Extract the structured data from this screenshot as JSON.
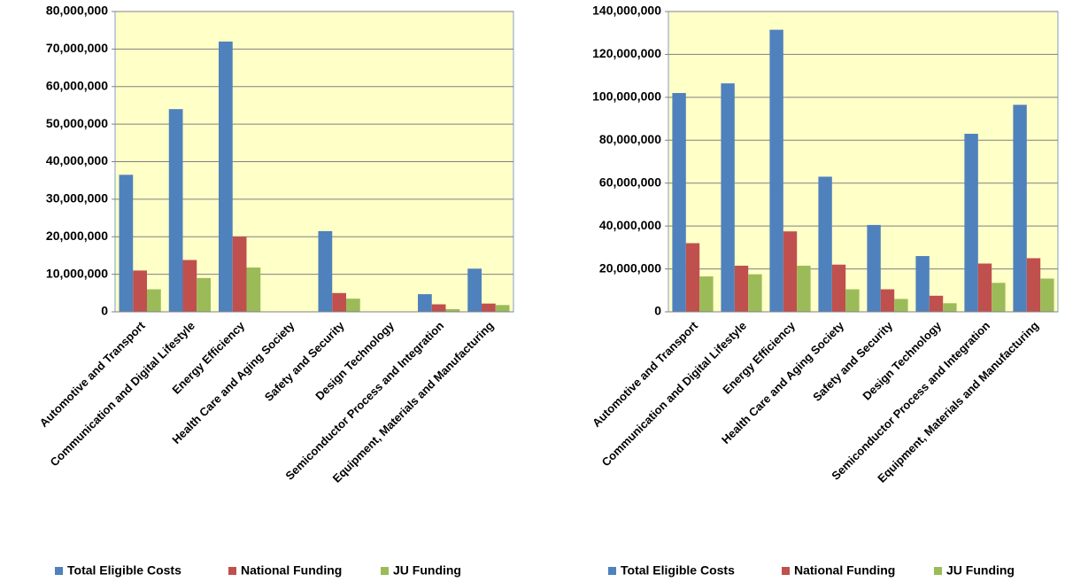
{
  "chart_data": [
    {
      "type": "bar",
      "categories": [
        "Automotive and Transport",
        "Communication and Digital Lifestyle",
        "Energy Efficiency",
        "Health Care and Aging Society",
        "Safety and Security",
        "Design Technology",
        "Semiconductor Process and Integration",
        "Equipment, Materials and Manufacturing"
      ],
      "series": [
        {
          "name": "Total Eligible Costs",
          "color": "#4f81bd",
          "values": [
            36500000,
            54000000,
            72000000,
            0,
            21500000,
            0,
            4700000,
            11500000
          ]
        },
        {
          "name": "National Funding",
          "color": "#c0504d",
          "values": [
            11000000,
            13800000,
            20000000,
            0,
            5000000,
            0,
            2000000,
            2200000
          ]
        },
        {
          "name": "JU Funding",
          "color": "#9bbb59",
          "values": [
            6000000,
            9000000,
            11800000,
            0,
            3500000,
            0,
            700000,
            1800000
          ]
        }
      ],
      "ylim": [
        0,
        80000000
      ],
      "yticks": [
        0,
        {
          "value": 10000000,
          "label": "10,000,000"
        },
        {
          "value": 20000000,
          "label": "20,000,000"
        },
        {
          "value": 30000000,
          "label": "30,000,000"
        },
        {
          "value": 40000000,
          "label": "40,000,000"
        },
        {
          "value": 50000000,
          "label": "50,000,000"
        },
        {
          "value": 60000000,
          "label": "60,000,000"
        },
        {
          "value": 70000000,
          "label": "70,000,000"
        },
        {
          "value": 80000000,
          "label": "80,000,000"
        }
      ],
      "grid": true,
      "legend": "bottom"
    },
    {
      "type": "bar",
      "categories": [
        "Automotive and Transport",
        "Communication and Digital Lifestyle",
        "Energy Efficiency",
        "Health Care and Aging Society",
        "Safety and Security",
        "Design Technology",
        "Semiconductor Process and Integration",
        "Equipment, Materials and Manufacturing"
      ],
      "series": [
        {
          "name": "Total Eligible Costs",
          "color": "#4f81bd",
          "values": [
            102000000,
            106500000,
            131500000,
            63000000,
            40500000,
            26000000,
            83000000,
            96500000
          ]
        },
        {
          "name": "National Funding",
          "color": "#c0504d",
          "values": [
            32000000,
            21500000,
            37500000,
            22000000,
            10500000,
            7500000,
            22500000,
            25000000
          ]
        },
        {
          "name": "JU Funding",
          "color": "#9bbb59",
          "values": [
            16500000,
            17500000,
            21500000,
            10500000,
            6000000,
            4000000,
            13500000,
            15500000
          ]
        }
      ],
      "ylim": [
        0,
        140000000
      ],
      "yticks": [
        0,
        {
          "value": 20000000,
          "label": "20,000,000"
        },
        {
          "value": 40000000,
          "label": "40,000,000"
        },
        {
          "value": 60000000,
          "label": "60,000,000"
        },
        {
          "value": 80000000,
          "label": "80,000,000"
        },
        {
          "value": 100000000,
          "label": "100,000,000"
        },
        {
          "value": 120000000,
          "label": "120,000,000"
        },
        {
          "value": 140000000,
          "label": "140,000,000"
        }
      ],
      "grid": true,
      "legend": "bottom"
    }
  ]
}
